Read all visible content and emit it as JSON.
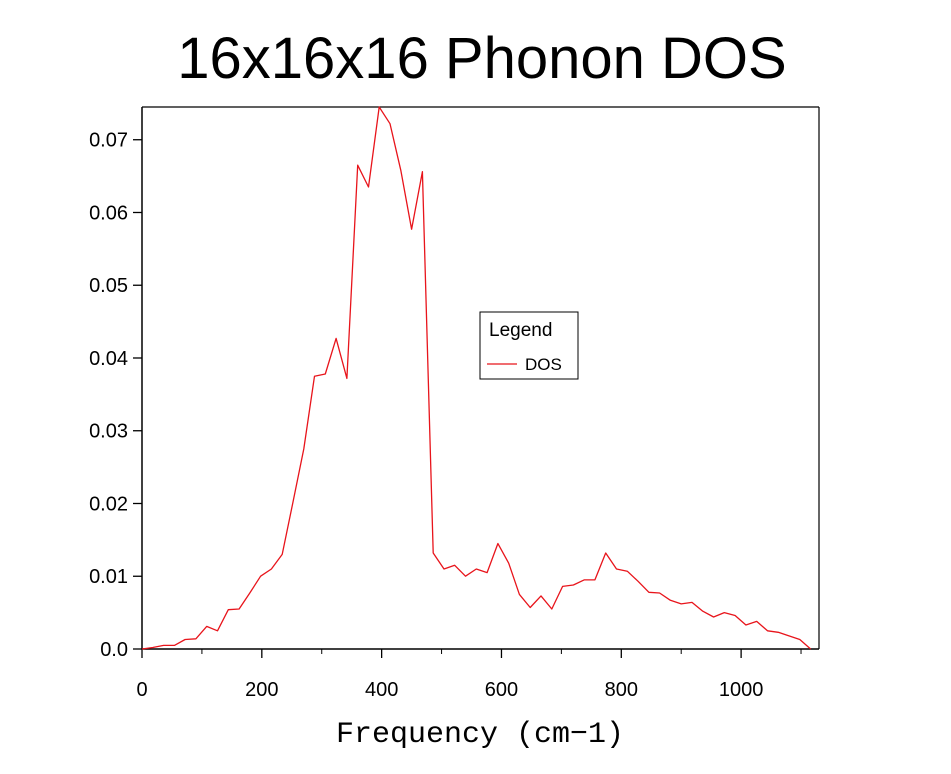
{
  "chart_data": {
    "type": "line",
    "title": "16x16x16 Phonon DOS",
    "xlabel": "Frequency (cm−1)",
    "ylabel": "",
    "xlim": [
      0,
      1130
    ],
    "ylim": [
      0,
      0.0745
    ],
    "x_ticks": [
      {
        "value": 0,
        "label": "0"
      },
      {
        "value": 200,
        "label": "200"
      },
      {
        "value": 400,
        "label": "400"
      },
      {
        "value": 600,
        "label": "600"
      },
      {
        "value": 800,
        "label": "800"
      },
      {
        "value": 1000,
        "label": "1000"
      }
    ],
    "y_ticks": [
      {
        "value": 0.0,
        "label": "0.0"
      },
      {
        "value": 0.01,
        "label": "0.01"
      },
      {
        "value": 0.02,
        "label": "0.02"
      },
      {
        "value": 0.03,
        "label": "0.03"
      },
      {
        "value": 0.04,
        "label": "0.04"
      },
      {
        "value": 0.05,
        "label": "0.05"
      },
      {
        "value": 0.06,
        "label": "0.06"
      },
      {
        "value": 0.07,
        "label": "0.07"
      }
    ],
    "grid": false,
    "legend": {
      "title": "Legend",
      "position": "center-right"
    },
    "series": [
      {
        "name": "DOS",
        "color": "#e8141b",
        "x": [
          0,
          18,
          36,
          54,
          72,
          90,
          108,
          126,
          144,
          162,
          180,
          198,
          216,
          234,
          252,
          270,
          288,
          306,
          324,
          342,
          360,
          378,
          396,
          414,
          432,
          450,
          468,
          486,
          504,
          522,
          540,
          558,
          576,
          594,
          612,
          630,
          648,
          666,
          684,
          702,
          720,
          738,
          756,
          774,
          792,
          810,
          828,
          846,
          864,
          882,
          900,
          918,
          936,
          954,
          972,
          990,
          1008,
          1026,
          1044,
          1062,
          1080,
          1098,
          1116
        ],
        "values": [
          0.0,
          0.0002,
          0.0005,
          0.0005,
          0.0013,
          0.0014,
          0.0031,
          0.0025,
          0.0054,
          0.0055,
          0.0077,
          0.01,
          0.011,
          0.013,
          0.0202,
          0.0275,
          0.0375,
          0.0378,
          0.0427,
          0.0372,
          0.0665,
          0.0635,
          0.0745,
          0.0722,
          0.0658,
          0.0577,
          0.0656,
          0.0132,
          0.011,
          0.0115,
          0.01,
          0.011,
          0.0105,
          0.0145,
          0.0118,
          0.0075,
          0.0057,
          0.0073,
          0.0055,
          0.0086,
          0.0088,
          0.0095,
          0.0095,
          0.0132,
          0.011,
          0.0107,
          0.0093,
          0.0078,
          0.0077,
          0.0067,
          0.0062,
          0.0064,
          0.0052,
          0.0044,
          0.005,
          0.0046,
          0.0033,
          0.0038,
          0.0025,
          0.0023,
          0.0018,
          0.0013,
          0.0
        ]
      }
    ]
  }
}
